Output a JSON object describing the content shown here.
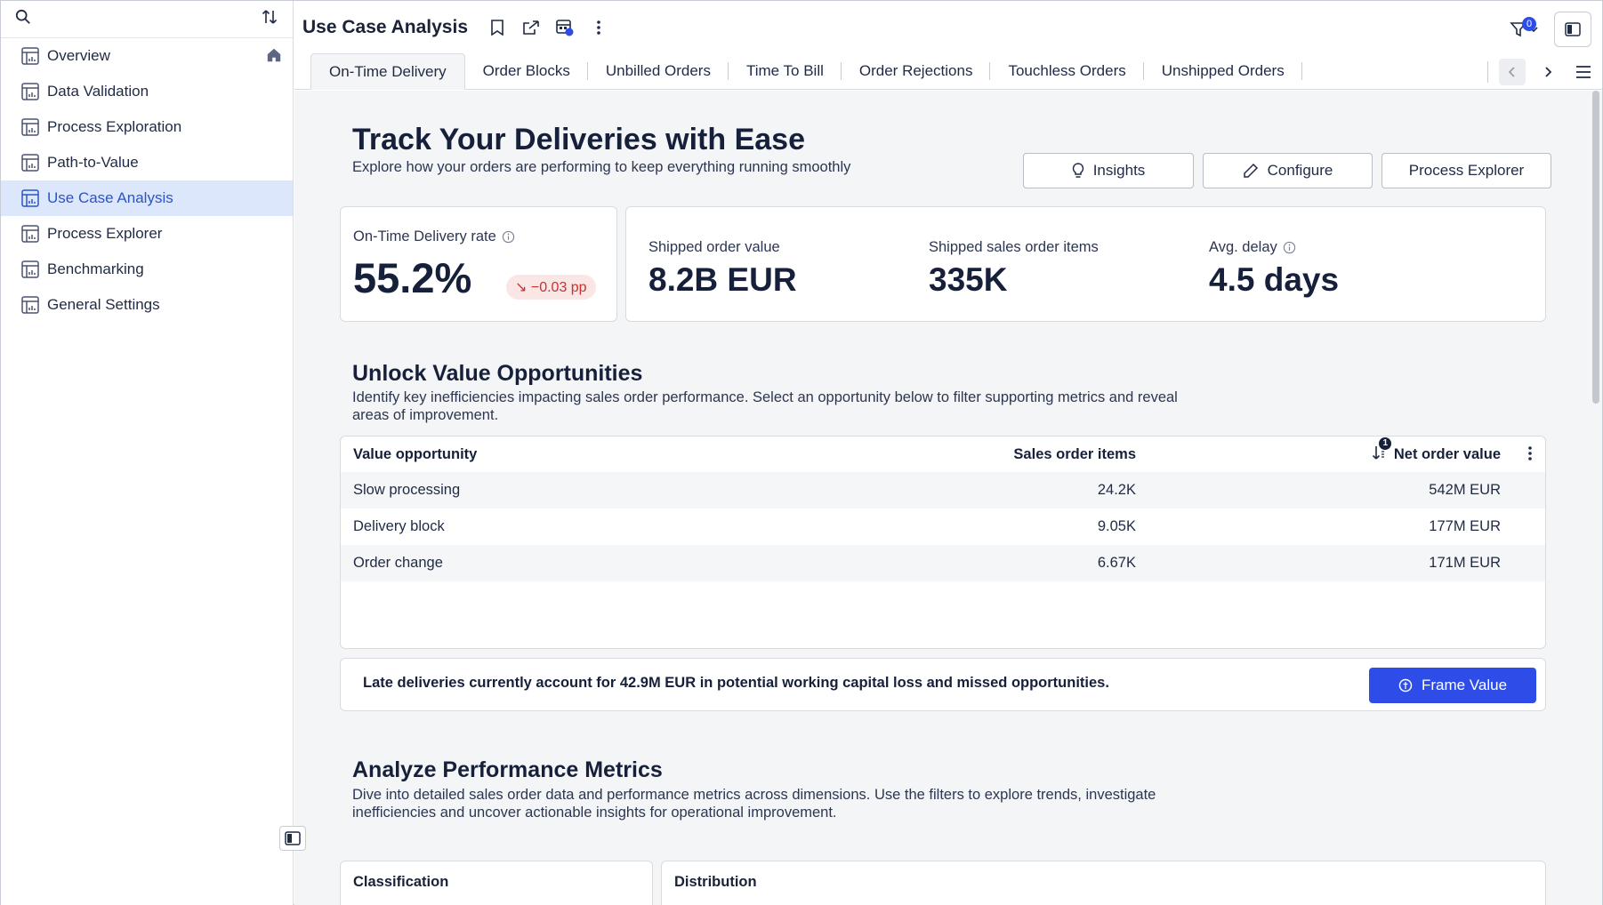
{
  "sidebar": {
    "search_placeholder": "",
    "items": [
      {
        "label": "Overview"
      },
      {
        "label": "Data Validation"
      },
      {
        "label": "Process Exploration"
      },
      {
        "label": "Path-to-Value"
      },
      {
        "label": "Use Case Analysis"
      },
      {
        "label": "Process Explorer"
      },
      {
        "label": "Benchmarking"
      },
      {
        "label": "General Settings"
      }
    ]
  },
  "header": {
    "title": "Use Case Analysis",
    "filter_count": "0"
  },
  "tabs": [
    {
      "label": "On-Time Delivery"
    },
    {
      "label": "Order Blocks"
    },
    {
      "label": "Unbilled Orders"
    },
    {
      "label": "Time To Bill"
    },
    {
      "label": "Order Rejections"
    },
    {
      "label": "Touchless Orders"
    },
    {
      "label": "Unshipped Orders"
    }
  ],
  "hero": {
    "title": "Track Your Deliveries with Ease",
    "subtitle": "Explore how your orders are performing to keep everything running smoothly",
    "buttons": {
      "insights": "Insights",
      "configure": "Configure",
      "process_explorer": "Process Explorer"
    }
  },
  "kpis": {
    "otd_label": "On-Time Delivery rate",
    "otd_value": "55.2%",
    "otd_delta": "↘ −0.03 pp",
    "shipped_value_label": "Shipped order value",
    "shipped_value": "8.2B EUR",
    "shipped_items_label": "Shipped sales order items",
    "shipped_items": "335K",
    "avg_delay_label": "Avg. delay",
    "avg_delay": "4.5 days"
  },
  "opportunities": {
    "title": "Unlock Value Opportunities",
    "subtitle": "Identify key inefficiencies impacting sales order performance. Select an opportunity below to filter supporting metrics and reveal areas of improvement.",
    "columns": [
      "Value opportunity",
      "Sales order items",
      "Net order value"
    ],
    "sort_badge": "1",
    "rows": [
      [
        "Slow processing",
        "24.2K",
        "542M EUR"
      ],
      [
        "Delivery block",
        "9.05K",
        "177M EUR"
      ],
      [
        "Order change",
        "6.67K",
        "171M EUR"
      ]
    ]
  },
  "banner": {
    "text": "Late deliveries currently account for 42.9M EUR in potential working capital loss and missed opportunities.",
    "button": "Frame Value"
  },
  "metrics": {
    "title": "Analyze Performance Metrics",
    "subtitle": "Dive into detailed sales order data and performance metrics across dimensions. Use the filters to explore trends, investigate inefficiencies and uncover actionable insights for operational improvement.",
    "classification": "Classification",
    "distribution": "Distribution"
  },
  "colors": {
    "accent": "#2e4de8",
    "active_bg": "#dde7fb",
    "negative": "#c53232"
  }
}
